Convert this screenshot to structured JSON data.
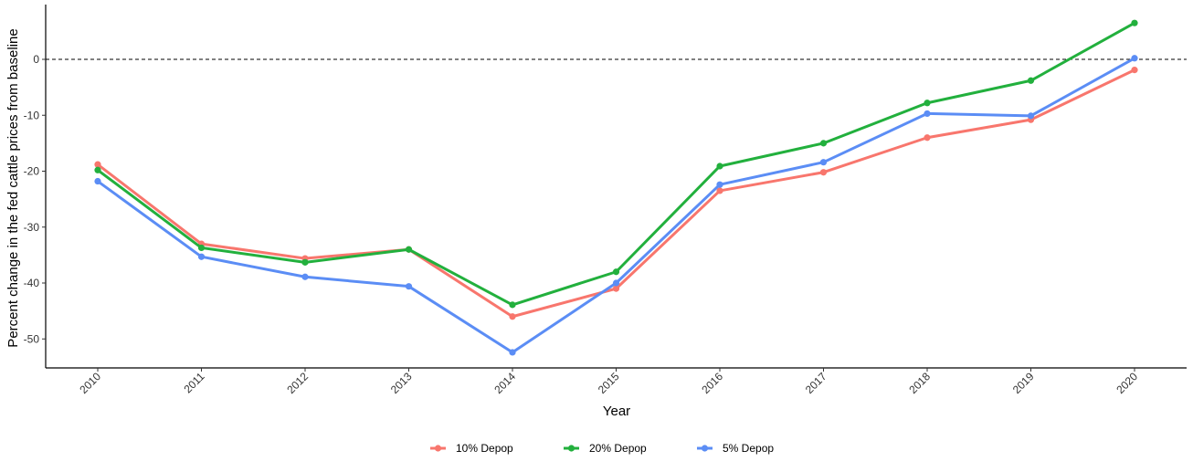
{
  "chart_data": {
    "type": "line",
    "title": "",
    "xlabel": "Year",
    "ylabel": "Percent change in the fed cattle prices from baseline",
    "x": [
      "2010",
      "2011",
      "2012",
      "2013",
      "2014",
      "2015",
      "2016",
      "2017",
      "2018",
      "2019",
      "2020"
    ],
    "yticks": [
      0,
      -10,
      -20,
      -30,
      -40,
      -50
    ],
    "ylim": [
      -55,
      9.5
    ],
    "reference_line": 0,
    "grid": false,
    "legend_position": "bottom",
    "series": [
      {
        "name": "10% Depop",
        "color": "#F8766D",
        "values": [
          -18.8,
          -33.0,
          -35.6,
          -34.0,
          -46.0,
          -41.0,
          -23.5,
          -20.2,
          -14.0,
          -10.8,
          -1.9
        ]
      },
      {
        "name": "20% Depop",
        "color": "#22B03D",
        "values": [
          -19.8,
          -33.7,
          -36.3,
          -34.0,
          -43.9,
          -38.0,
          -19.1,
          -15.0,
          -7.8,
          -3.8,
          6.5
        ]
      },
      {
        "name": "5% Depop",
        "color": "#5B8DF5",
        "values": [
          -21.8,
          -35.3,
          -38.9,
          -40.6,
          -52.4,
          -40.0,
          -22.4,
          -18.4,
          -9.7,
          -10.1,
          0.2
        ]
      }
    ]
  }
}
